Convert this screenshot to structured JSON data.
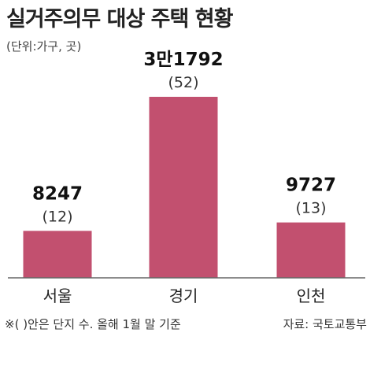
{
  "chart_data": {
    "type": "bar",
    "title": "실거주의무 대상 주택 현황",
    "unit_note": "(단위:가구, 곳)",
    "categories": [
      "서울",
      "경기",
      "인천"
    ],
    "values": [
      8247,
      31792,
      9727
    ],
    "value_labels": [
      "8247",
      "3만1792",
      "9727"
    ],
    "sub_labels": [
      "(12)",
      "(52)",
      "(13)"
    ],
    "footnote": "※( )안은 단지 수. 올해 1월 말 기준",
    "source": "자료: 국토교통부",
    "bar_color": "#c2506f",
    "grid": false,
    "legend": "none"
  }
}
